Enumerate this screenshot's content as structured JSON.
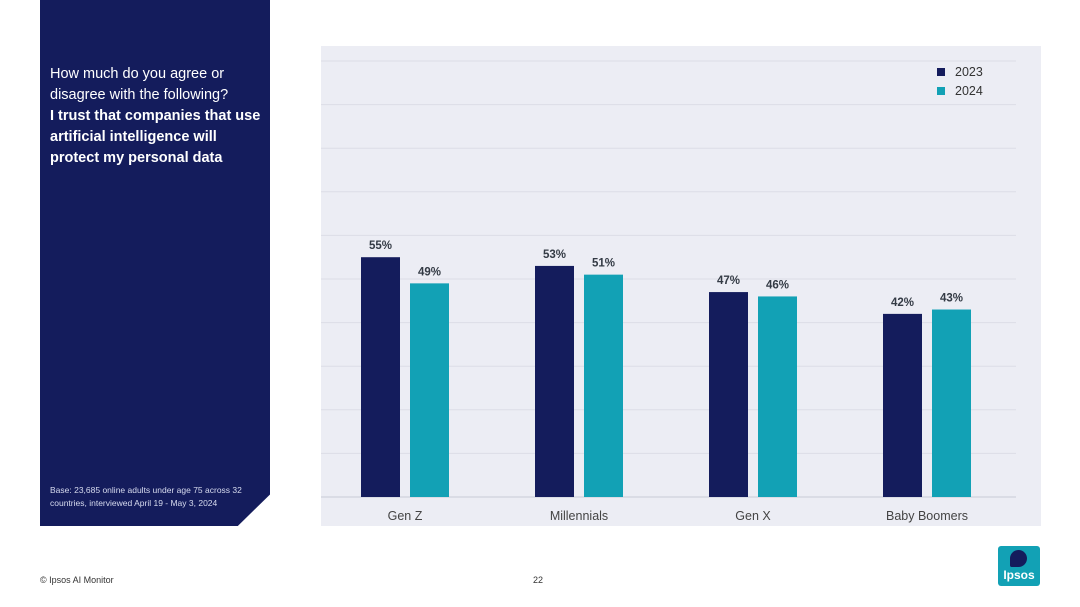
{
  "panel": {
    "question_regular": "How much do you agree or disagree with the following?",
    "question_bold": "I trust that companies that use artificial intelligence will protect my personal data",
    "base_note": "Base: 23,685 online adults under age 75 across 32 countries, interviewed April 19 - May 3, 2024"
  },
  "footer": {
    "copyright": "© Ipsos AI Monitor",
    "page_number": "22",
    "logo_text": "Ipsos"
  },
  "colors": {
    "panel_bg": "#141c5c",
    "series_2023": "#141c5c",
    "series_2024": "#12a1b5",
    "chart_bg": "#ecedf4"
  },
  "chart_data": {
    "type": "bar",
    "categories": [
      "Gen Z",
      "Millennials",
      "Gen X",
      "Baby Boomers"
    ],
    "series": [
      {
        "name": "2023",
        "values": [
          55,
          53,
          47,
          42
        ],
        "labels": [
          "55%",
          "53%",
          "47%",
          "42%"
        ]
      },
      {
        "name": "2024",
        "values": [
          49,
          51,
          46,
          43
        ],
        "labels": [
          "49%",
          "51%",
          "46%",
          "43%"
        ]
      }
    ],
    "ylim": [
      0,
      100
    ],
    "grid": true,
    "legend": "top-right",
    "title": "",
    "xlabel": "",
    "ylabel": ""
  }
}
